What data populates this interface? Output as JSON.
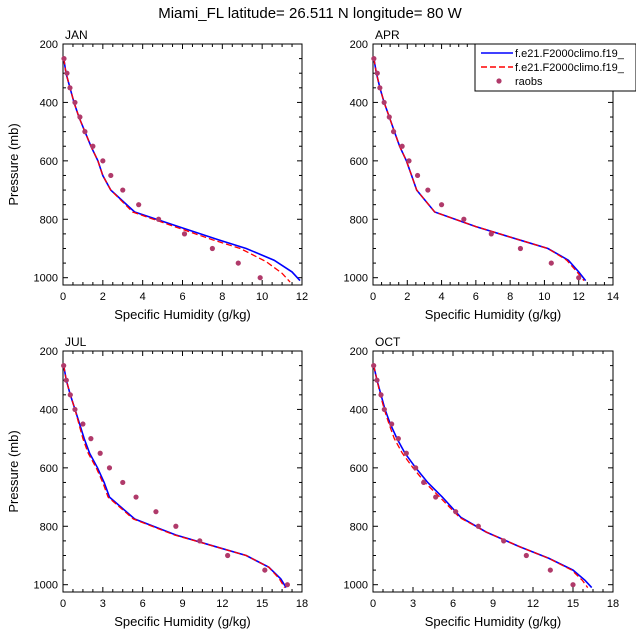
{
  "title": "Miami_FL  latitude= 26.511 N longitude= 80 W",
  "legend": {
    "placement": "top-right",
    "entries": [
      {
        "label": "f.e21.F2000climo.f19_",
        "style": "solid",
        "color": "#0000ff"
      },
      {
        "label": "f.e21.F2000climo.f19_",
        "style": "dashed",
        "color": "#ff0000"
      },
      {
        "label": "raobs",
        "style": "marker",
        "color": "#b03a6a"
      }
    ]
  },
  "chart_data": [
    {
      "type": "line",
      "title": "JAN",
      "xlabel": "Specific Humidity (g/kg)",
      "ylabel": "Pressure (mb)",
      "xlim": [
        0,
        12
      ],
      "ylim": [
        200,
        1025
      ],
      "xticks": [
        "0",
        "2",
        "4",
        "6",
        "8",
        "10",
        "12"
      ],
      "yticks": [
        "200",
        "400",
        "600",
        "800",
        "1000"
      ],
      "y_reversed": true,
      "series": [
        {
          "name": "f.e21.F2000climo.f19_",
          "color": "#0000ff",
          "dash": "solid",
          "points": [
            [
              0.04,
              250
            ],
            [
              0.15,
              300
            ],
            [
              0.35,
              350
            ],
            [
              0.55,
              400
            ],
            [
              0.8,
              450
            ],
            [
              1.1,
              500
            ],
            [
              1.4,
              550
            ],
            [
              1.75,
              600
            ],
            [
              2.0,
              650
            ],
            [
              2.4,
              700
            ],
            [
              3.6,
              775
            ],
            [
              5.8,
              825
            ],
            [
              7.8,
              870
            ],
            [
              9.2,
              900
            ],
            [
              10.6,
              940
            ],
            [
              11.5,
              980
            ],
            [
              11.9,
              1010
            ]
          ]
        },
        {
          "name": "f.e21.F2000climo.f19_",
          "color": "#ff0000",
          "dash": "dashed",
          "points": [
            [
              0.04,
              250
            ],
            [
              0.15,
              300
            ],
            [
              0.35,
              350
            ],
            [
              0.55,
              400
            ],
            [
              0.8,
              450
            ],
            [
              1.1,
              500
            ],
            [
              1.4,
              550
            ],
            [
              1.75,
              600
            ],
            [
              2.0,
              650
            ],
            [
              2.4,
              700
            ],
            [
              3.5,
              775
            ],
            [
              5.6,
              825
            ],
            [
              7.5,
              870
            ],
            [
              8.9,
              900
            ],
            [
              10.2,
              945
            ],
            [
              11.0,
              985
            ],
            [
              11.4,
              1015
            ]
          ]
        },
        {
          "name": "raobs",
          "color": "#b03a6a",
          "dash": "marker",
          "points": [
            [
              0.05,
              250
            ],
            [
              0.2,
              300
            ],
            [
              0.35,
              350
            ],
            [
              0.6,
              400
            ],
            [
              0.85,
              450
            ],
            [
              1.1,
              500
            ],
            [
              1.5,
              550
            ],
            [
              2.0,
              600
            ],
            [
              2.4,
              650
            ],
            [
              3.0,
              700
            ],
            [
              3.8,
              750
            ],
            [
              4.8,
              800
            ],
            [
              6.1,
              850
            ],
            [
              7.5,
              900
            ],
            [
              8.8,
              950
            ],
            [
              9.9,
              1000
            ]
          ]
        }
      ]
    },
    {
      "type": "line",
      "title": "APR",
      "xlabel": "Specific Humidity (g/kg)",
      "ylabel": "",
      "xlim": [
        0,
        14
      ],
      "ylim": [
        200,
        1025
      ],
      "xticks": [
        "0",
        "2",
        "4",
        "6",
        "8",
        "10",
        "12",
        "14"
      ],
      "yticks": [
        "200",
        "400",
        "600",
        "800",
        "1000"
      ],
      "y_reversed": true,
      "series": [
        {
          "name": "f.e21.F2000climo.f19_",
          "color": "#0000ff",
          "dash": "solid",
          "points": [
            [
              0.05,
              250
            ],
            [
              0.2,
              300
            ],
            [
              0.4,
              350
            ],
            [
              0.65,
              400
            ],
            [
              0.95,
              450
            ],
            [
              1.25,
              500
            ],
            [
              1.55,
              550
            ],
            [
              1.95,
              600
            ],
            [
              2.25,
              650
            ],
            [
              2.55,
              700
            ],
            [
              3.6,
              775
            ],
            [
              6.0,
              825
            ],
            [
              8.5,
              870
            ],
            [
              10.2,
              900
            ],
            [
              11.4,
              940
            ],
            [
              12.0,
              980
            ],
            [
              12.4,
              1010
            ]
          ]
        },
        {
          "name": "f.e21.F2000climo.f19_",
          "color": "#ff0000",
          "dash": "dashed",
          "points": [
            [
              0.05,
              250
            ],
            [
              0.2,
              300
            ],
            [
              0.4,
              350
            ],
            [
              0.65,
              400
            ],
            [
              0.95,
              450
            ],
            [
              1.25,
              500
            ],
            [
              1.55,
              550
            ],
            [
              1.95,
              600
            ],
            [
              2.25,
              650
            ],
            [
              2.55,
              700
            ],
            [
              3.6,
              775
            ],
            [
              6.0,
              825
            ],
            [
              8.5,
              870
            ],
            [
              10.2,
              900
            ],
            [
              11.3,
              940
            ],
            [
              11.9,
              980
            ],
            [
              12.3,
              1010
            ]
          ]
        },
        {
          "name": "raobs",
          "color": "#b03a6a",
          "dash": "marker",
          "points": [
            [
              0.05,
              250
            ],
            [
              0.25,
              300
            ],
            [
              0.4,
              350
            ],
            [
              0.65,
              400
            ],
            [
              0.95,
              450
            ],
            [
              1.2,
              500
            ],
            [
              1.7,
              550
            ],
            [
              2.1,
              600
            ],
            [
              2.6,
              650
            ],
            [
              3.2,
              700
            ],
            [
              4.0,
              750
            ],
            [
              5.3,
              800
            ],
            [
              6.9,
              850
            ],
            [
              8.6,
              900
            ],
            [
              10.4,
              950
            ],
            [
              12.0,
              1000
            ]
          ]
        }
      ]
    },
    {
      "type": "line",
      "title": "JUL",
      "xlabel": "Specific Humidity (g/kg)",
      "ylabel": "Pressure (mb)",
      "xlim": [
        0,
        18
      ],
      "ylim": [
        200,
        1025
      ],
      "xticks": [
        "0",
        "3",
        "6",
        "9",
        "12",
        "15",
        "18"
      ],
      "yticks": [
        "200",
        "400",
        "600",
        "800",
        "1000"
      ],
      "y_reversed": true,
      "series": [
        {
          "name": "f.e21.F2000climo.f19_",
          "color": "#0000ff",
          "dash": "solid",
          "points": [
            [
              0.05,
              250
            ],
            [
              0.25,
              300
            ],
            [
              0.55,
              350
            ],
            [
              0.9,
              400
            ],
            [
              1.25,
              450
            ],
            [
              1.6,
              500
            ],
            [
              2.0,
              550
            ],
            [
              2.6,
              600
            ],
            [
              3.1,
              650
            ],
            [
              3.5,
              700
            ],
            [
              5.4,
              775
            ],
            [
              8.5,
              830
            ],
            [
              11.5,
              870
            ],
            [
              13.8,
              900
            ],
            [
              15.5,
              940
            ],
            [
              16.4,
              980
            ],
            [
              16.8,
              1010
            ]
          ]
        },
        {
          "name": "f.e21.F2000climo.f19_",
          "color": "#ff0000",
          "dash": "dashed",
          "points": [
            [
              0.05,
              250
            ],
            [
              0.25,
              300
            ],
            [
              0.55,
              350
            ],
            [
              0.9,
              400
            ],
            [
              1.2,
              450
            ],
            [
              1.5,
              500
            ],
            [
              1.9,
              550
            ],
            [
              2.5,
              600
            ],
            [
              3.0,
              650
            ],
            [
              3.4,
              700
            ],
            [
              5.3,
              775
            ],
            [
              8.4,
              830
            ],
            [
              11.5,
              870
            ],
            [
              13.8,
              900
            ],
            [
              15.5,
              940
            ],
            [
              16.3,
              980
            ],
            [
              16.7,
              1010
            ]
          ]
        },
        {
          "name": "raobs",
          "color": "#b03a6a",
          "dash": "marker",
          "points": [
            [
              0.05,
              250
            ],
            [
              0.25,
              300
            ],
            [
              0.55,
              350
            ],
            [
              0.9,
              400
            ],
            [
              1.5,
              450
            ],
            [
              2.1,
              500
            ],
            [
              2.8,
              550
            ],
            [
              3.5,
              600
            ],
            [
              4.5,
              650
            ],
            [
              5.5,
              700
            ],
            [
              7.0,
              750
            ],
            [
              8.5,
              800
            ],
            [
              10.3,
              850
            ],
            [
              12.4,
              900
            ],
            [
              15.2,
              950
            ],
            [
              16.9,
              1000
            ]
          ]
        }
      ]
    },
    {
      "type": "line",
      "title": "OCT",
      "xlabel": "Specific Humidity (g/kg)",
      "ylabel": "",
      "xlim": [
        0,
        18
      ],
      "ylim": [
        200,
        1025
      ],
      "xticks": [
        "0",
        "3",
        "6",
        "9",
        "12",
        "15",
        "18"
      ],
      "yticks": [
        "200",
        "400",
        "600",
        "800",
        "1000"
      ],
      "y_reversed": true,
      "series": [
        {
          "name": "f.e21.F2000climo.f19_",
          "color": "#0000ff",
          "dash": "solid",
          "points": [
            [
              0.05,
              250
            ],
            [
              0.3,
              300
            ],
            [
              0.6,
              350
            ],
            [
              0.9,
              400
            ],
            [
              1.3,
              450
            ],
            [
              1.8,
              500
            ],
            [
              2.4,
              550
            ],
            [
              3.2,
              600
            ],
            [
              4.1,
              650
            ],
            [
              5.2,
              700
            ],
            [
              6.6,
              770
            ],
            [
              8.5,
              820
            ],
            [
              11.0,
              870
            ],
            [
              13.2,
              910
            ],
            [
              15.0,
              950
            ],
            [
              15.9,
              985
            ],
            [
              16.4,
              1010
            ]
          ]
        },
        {
          "name": "f.e21.F2000climo.f19_",
          "color": "#ff0000",
          "dash": "dashed",
          "points": [
            [
              0.05,
              250
            ],
            [
              0.3,
              300
            ],
            [
              0.55,
              350
            ],
            [
              0.85,
              400
            ],
            [
              1.2,
              450
            ],
            [
              1.6,
              500
            ],
            [
              2.2,
              550
            ],
            [
              3.0,
              600
            ],
            [
              3.9,
              650
            ],
            [
              5.0,
              700
            ],
            [
              6.5,
              770
            ],
            [
              8.5,
              820
            ],
            [
              11.0,
              870
            ],
            [
              13.2,
              910
            ],
            [
              14.9,
              950
            ],
            [
              15.7,
              985
            ],
            [
              16.1,
              1010
            ]
          ]
        },
        {
          "name": "raobs",
          "color": "#b03a6a",
          "dash": "marker",
          "points": [
            [
              0.05,
              250
            ],
            [
              0.3,
              300
            ],
            [
              0.6,
              350
            ],
            [
              0.85,
              400
            ],
            [
              1.4,
              450
            ],
            [
              1.9,
              500
            ],
            [
              2.5,
              550
            ],
            [
              3.2,
              600
            ],
            [
              3.8,
              650
            ],
            [
              4.7,
              700
            ],
            [
              6.2,
              750
            ],
            [
              7.9,
              800
            ],
            [
              9.8,
              850
            ],
            [
              11.5,
              900
            ],
            [
              13.3,
              950
            ],
            [
              15.0,
              1000
            ]
          ]
        }
      ]
    }
  ]
}
